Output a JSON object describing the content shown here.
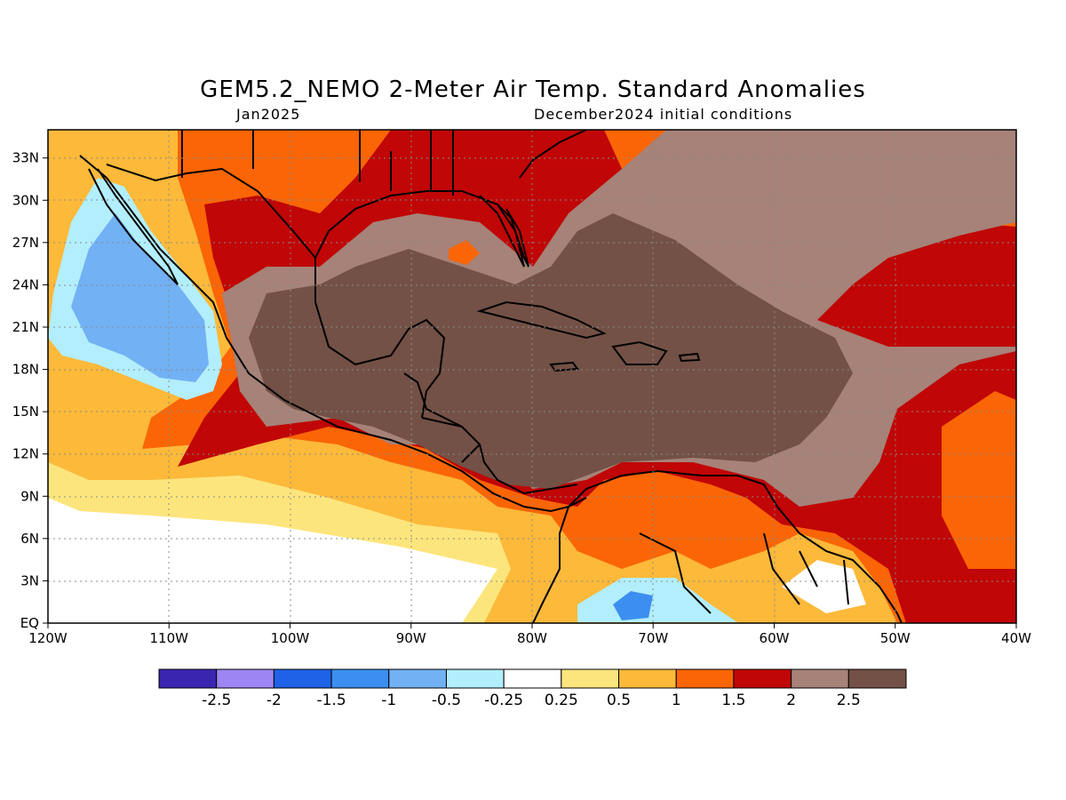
{
  "title": "GEM5.2_NEMO 2-Meter Air Temp. Standard Anomalies",
  "subtitle_left": "Jan2025",
  "subtitle_right": "December2024 initial conditions",
  "lon_labels": [
    "120W",
    "110W",
    "100W",
    "90W",
    "80W",
    "70W",
    "60W",
    "50W",
    "40W"
  ],
  "lat_labels": [
    "EQ",
    "3N",
    "6N",
    "9N",
    "12N",
    "15N",
    "18N",
    "21N",
    "24N",
    "27N",
    "30N",
    "33N"
  ],
  "map_extent": {
    "lon_min": -120,
    "lon_max": -40,
    "lat_min": 0,
    "lat_max": 35
  },
  "colorbar": {
    "colors": [
      "#3a25b0",
      "#9d86f4",
      "#1f62e6",
      "#3c8ff0",
      "#72b1f4",
      "#b2eefc",
      "#ffffff",
      "#fde57d",
      "#fcb93a",
      "#fa6506",
      "#c00606",
      "#a68278",
      "#735146"
    ],
    "labels": [
      "-2.5",
      "-2",
      "-1.5",
      "-1",
      "-0.5",
      "-0.25",
      "0.25",
      "0.5",
      "1",
      "1.5",
      "2",
      "2.5"
    ]
  },
  "colors": {
    "brown_dark": "#735146",
    "brown_light": "#a68278",
    "red": "#c00606",
    "orange": "#fa6506",
    "gold": "#fcb93a",
    "yellow": "#fde57d",
    "white": "#ffffff",
    "cyan_light": "#b2eefc",
    "blue_light": "#72b1f4",
    "blue": "#3c8ff0"
  }
}
